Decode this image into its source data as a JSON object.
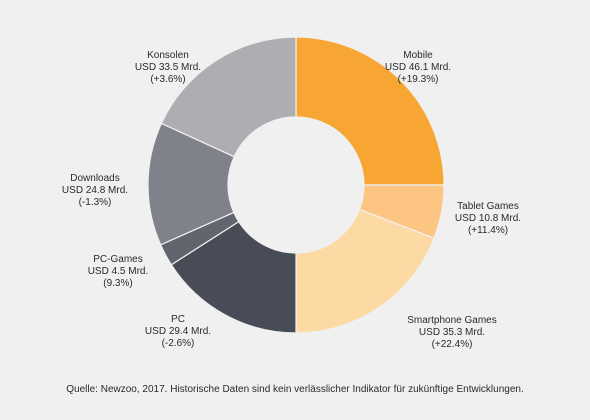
{
  "chart_data": {
    "type": "pie",
    "variant": "donut",
    "slices": [
      {
        "name": "Mobile",
        "lines": [
          "Mobile",
          "USD 46.1 Mrd.",
          "(+19.3%)"
        ],
        "value": 46.1,
        "color": "#f7a634"
      },
      {
        "name": "Tablet Games",
        "lines": [
          "Tablet Games",
          "USD 10.8 Mrd.",
          "(+11.4%)"
        ],
        "value": 10.8,
        "color": "#fcc682"
      },
      {
        "name": "Smartphone Games",
        "lines": [
          "Smartphone Games",
          "USD 35.3 Mrd.",
          "(+22.4%)"
        ],
        "value": 35.3,
        "color": "#fdd9a4"
      },
      {
        "name": "PC",
        "lines": [
          "PC",
          "USD 29.4 Mrd.",
          "(-2.6%)"
        ],
        "value": 29.4,
        "color": "#484c57"
      },
      {
        "name": "PC-Games",
        "lines": [
          "PC-Games",
          "USD 4.5 Mrd.",
          "(9.3%)"
        ],
        "value": 4.5,
        "color": "#61656e"
      },
      {
        "name": "Downloads",
        "lines": [
          "Downloads",
          "USD 24.8 Mrd.",
          "(-1.3%)"
        ],
        "value": 24.8,
        "color": "#7f828a"
      },
      {
        "name": "Konsolen",
        "lines": [
          "Konsolen",
          "USD 33.5 Mrd.",
          "(+3.6%)"
        ],
        "value": 33.5,
        "color": "#aeaeb2"
      }
    ]
  },
  "source": "Quelle: Newzoo, 2017. Historische Daten sind kein verlässlicher Indikator für zukünftige Entwicklungen."
}
